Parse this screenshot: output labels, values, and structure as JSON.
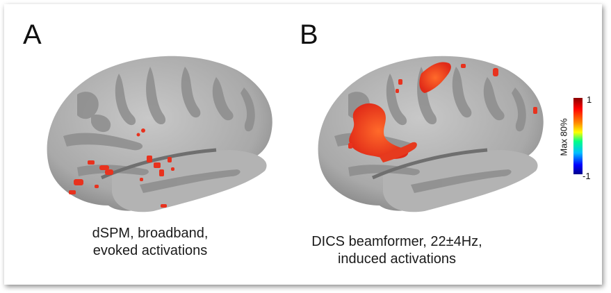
{
  "panels": [
    {
      "letter": "A",
      "caption_line1": "dSPM, broadband,",
      "caption_line2": "evoked activations"
    },
    {
      "letter": "B",
      "caption_line1": "DICS beamformer, 22±4Hz,",
      "caption_line2": "induced activations"
    }
  ],
  "colorbar": {
    "label": "Max 80%",
    "max_label": "1",
    "min_label": "-1"
  },
  "colors": {
    "cortex_light": "#b9b9b9",
    "cortex_dark": "#8a8a8a",
    "activation": "#e8321e"
  }
}
